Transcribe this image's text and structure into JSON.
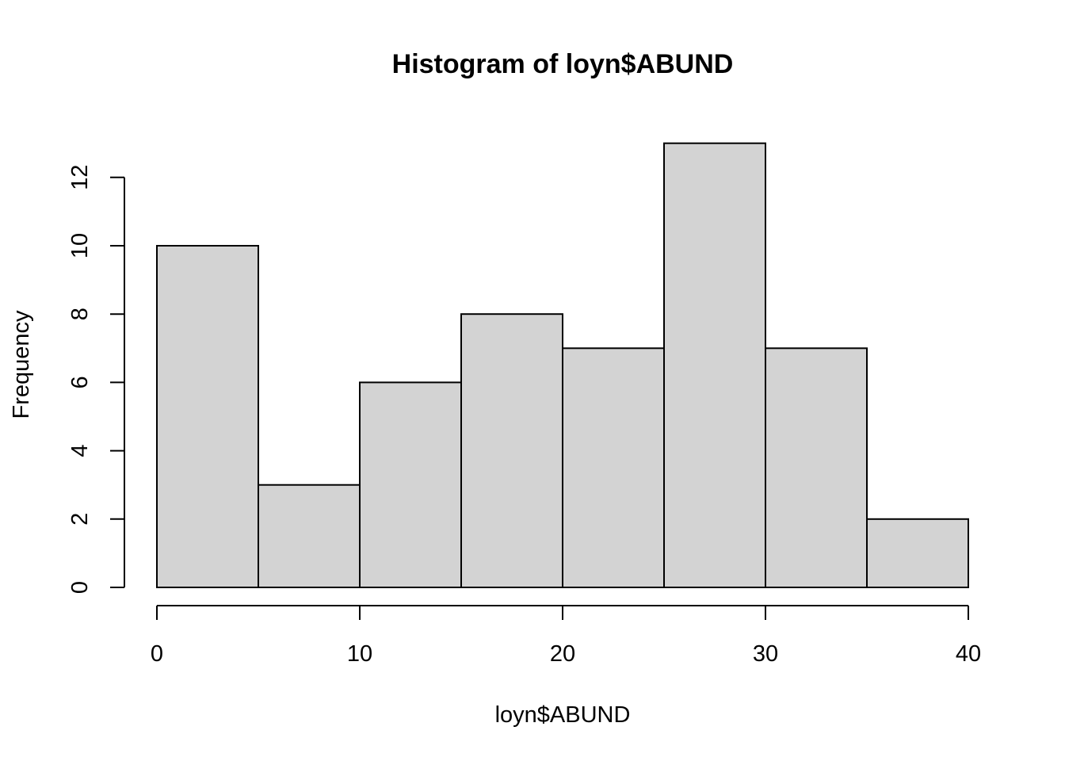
{
  "chart_data": {
    "type": "bar",
    "title": "Histogram of loyn$ABUND",
    "xlabel": "loyn$ABUND",
    "ylabel": "Frequency",
    "bins": [
      {
        "start": 0,
        "end": 5,
        "count": 10
      },
      {
        "start": 5,
        "end": 10,
        "count": 3
      },
      {
        "start": 10,
        "end": 15,
        "count": 6
      },
      {
        "start": 15,
        "end": 20,
        "count": 8
      },
      {
        "start": 20,
        "end": 25,
        "count": 7
      },
      {
        "start": 25,
        "end": 30,
        "count": 13
      },
      {
        "start": 30,
        "end": 35,
        "count": 7
      },
      {
        "start": 35,
        "end": 40,
        "count": 2
      }
    ],
    "xlim": [
      0,
      40
    ],
    "ylim": [
      0,
      13
    ],
    "x_ticks": [
      "0",
      "10",
      "20",
      "30",
      "40"
    ],
    "y_ticks": [
      "0",
      "2",
      "4",
      "6",
      "8",
      "10",
      "12"
    ],
    "bar_color": "#d3d3d3",
    "grid": false,
    "legend": "none"
  }
}
